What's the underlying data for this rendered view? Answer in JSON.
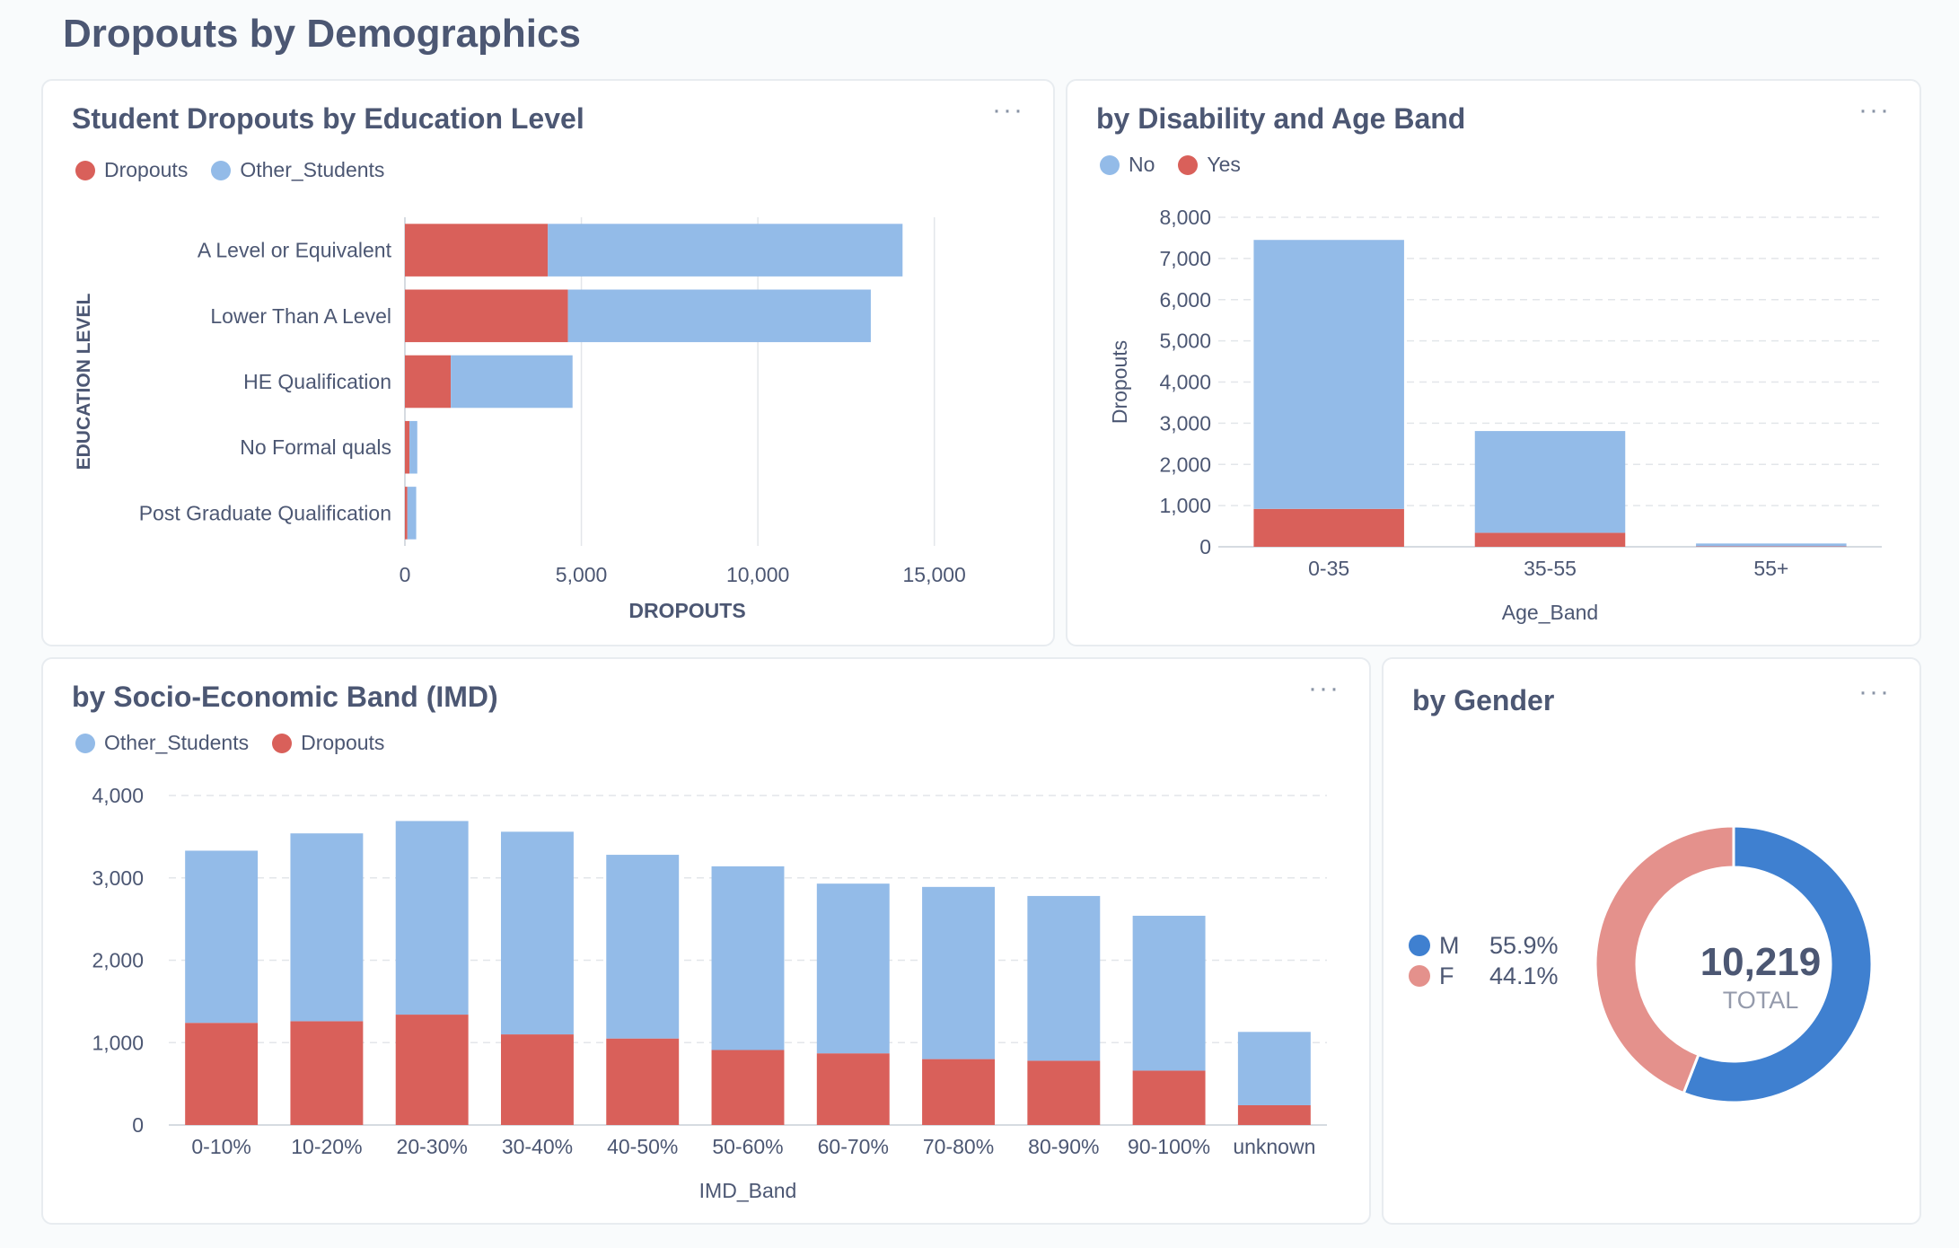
{
  "page": {
    "title": "Dropouts by Demographics"
  },
  "menu_glyph": "···",
  "colors": {
    "dropouts": "#d9605a",
    "other": "#93bbe8",
    "male": "#3f80d0",
    "female": "#e4918c",
    "grid": "#e3e6ea",
    "text": "#4c5773"
  },
  "cards": {
    "education": {
      "title": "Student Dropouts by Education Level",
      "legend": [
        {
          "label": "Dropouts",
          "color": "#d9605a"
        },
        {
          "label": "Other_Students",
          "color": "#93bbe8"
        }
      ]
    },
    "disability": {
      "title": "by Disability and Age Band",
      "legend": [
        {
          "label": "No",
          "color": "#93bbe8"
        },
        {
          "label": "Yes",
          "color": "#d9605a"
        }
      ]
    },
    "imd": {
      "title": "by Socio-Economic Band (IMD)",
      "legend": [
        {
          "label": "Other_Students",
          "color": "#93bbe8"
        },
        {
          "label": "Dropouts",
          "color": "#d9605a"
        }
      ]
    },
    "gender": {
      "title": "by Gender",
      "total": "10,219",
      "total_label": "TOTAL",
      "legend": [
        {
          "key": "M",
          "pct": "55.9%",
          "color": "#3f80d0"
        },
        {
          "key": "F",
          "pct": "44.1%",
          "color": "#e4918c"
        }
      ]
    }
  },
  "chart_data": [
    {
      "id": "education",
      "type": "bar",
      "orientation": "horizontal",
      "stacked": true,
      "title": "Student Dropouts by Education Level",
      "xlabel": "DROPOUTS",
      "ylabel": "EDUCATION LEVEL",
      "categories": [
        "A Level or Equivalent",
        "Lower Than A Level",
        "HE Qualification",
        "No Formal quals",
        "Post Graduate Qualification"
      ],
      "series": [
        {
          "name": "Dropouts",
          "color": "#d9605a",
          "values": [
            4050,
            4620,
            1300,
            130,
            70
          ]
        },
        {
          "name": "Other_Students",
          "color": "#93bbe8",
          "values": [
            10050,
            8580,
            3450,
            220,
            250
          ]
        }
      ],
      "xlim": [
        0,
        16000
      ],
      "xticks": [
        0,
        5000,
        10000,
        15000
      ],
      "xtick_labels": [
        "0",
        "5,000",
        "10,000",
        "15,000"
      ],
      "grid": "vertical",
      "legend": "top-left"
    },
    {
      "id": "disability",
      "type": "bar",
      "stacked": true,
      "title": "by Disability and Age Band",
      "xlabel": "Age_Band",
      "ylabel": "Dropouts",
      "categories": [
        "0-35",
        "35-55",
        "55+"
      ],
      "series": [
        {
          "name": "Yes",
          "color": "#d9605a",
          "values": [
            920,
            340,
            10
          ]
        },
        {
          "name": "No",
          "color": "#93bbe8",
          "values": [
            6530,
            2470,
            70
          ]
        }
      ],
      "ylim": [
        0,
        8000
      ],
      "yticks": [
        0,
        1000,
        2000,
        3000,
        4000,
        5000,
        6000,
        7000,
        8000
      ],
      "ytick_labels": [
        "0",
        "1,000",
        "2,000",
        "3,000",
        "4,000",
        "5,000",
        "6,000",
        "7,000",
        "8,000"
      ],
      "grid": "horizontal-dashed",
      "legend": "top-left"
    },
    {
      "id": "imd",
      "type": "bar",
      "stacked": true,
      "title": "by Socio-Economic Band (IMD)",
      "xlabel": "IMD_Band",
      "ylabel": "",
      "categories": [
        "0-10%",
        "10-20%",
        "20-30%",
        "30-40%",
        "40-50%",
        "50-60%",
        "60-70%",
        "70-80%",
        "80-90%",
        "90-100%",
        "unknown"
      ],
      "series": [
        {
          "name": "Dropouts",
          "color": "#d9605a",
          "values": [
            1240,
            1260,
            1340,
            1100,
            1050,
            910,
            870,
            800,
            780,
            660,
            240
          ]
        },
        {
          "name": "Other_Students",
          "color": "#93bbe8",
          "values": [
            2090,
            2280,
            2350,
            2460,
            2230,
            2230,
            2060,
            2090,
            2000,
            1880,
            890
          ]
        }
      ],
      "ylim": [
        0,
        4000
      ],
      "yticks": [
        0,
        1000,
        2000,
        3000,
        4000
      ],
      "ytick_labels": [
        "0",
        "1,000",
        "2,000",
        "3,000",
        "4,000"
      ],
      "grid": "horizontal-dashed",
      "legend": "top-left"
    },
    {
      "id": "gender",
      "type": "pie",
      "donut": true,
      "title": "by Gender",
      "categories": [
        "M",
        "F"
      ],
      "values": [
        55.9,
        44.1
      ],
      "colors": [
        "#3f80d0",
        "#e4918c"
      ],
      "total": 10219,
      "legend": "left"
    }
  ]
}
